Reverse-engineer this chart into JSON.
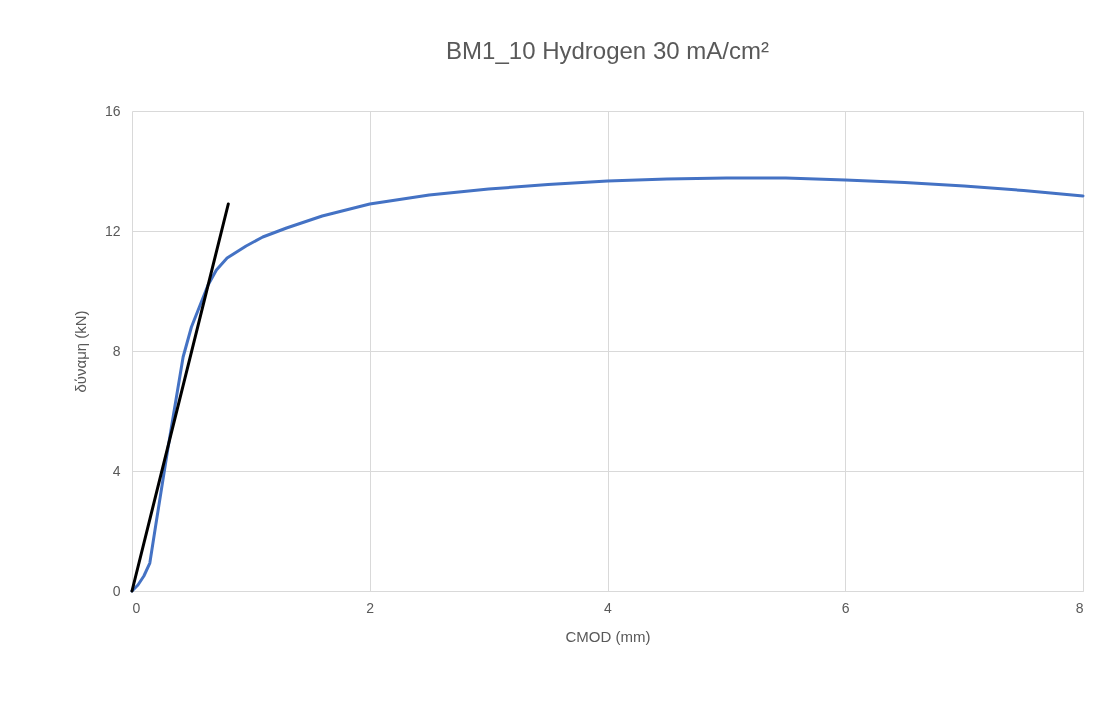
{
  "chart_data": {
    "type": "line",
    "title": "BM1_10 Hydrogen 30 mA/cm²",
    "xlabel": "CMOD (mm)",
    "ylabel": "δύναμη  (kN)",
    "x": [
      0,
      0.05,
      0.1,
      0.15,
      0.2,
      0.26,
      0.3,
      0.35,
      0.43,
      0.5,
      0.57,
      0.64,
      0.71,
      0.8,
      0.96,
      1.1,
      1.3,
      1.6,
      2,
      2.5,
      3,
      3.5,
      4,
      4.5,
      5,
      5.5,
      6,
      6.5,
      7,
      7.5,
      8
    ],
    "series": [
      {
        "color": "#4472c4",
        "values": [
          0,
          0.2,
          0.5,
          0.93,
          2.2,
          3.7,
          4.7,
          5.9,
          7.8,
          8.8,
          9.5,
          10.2,
          10.7,
          11.1,
          11.5,
          11.8,
          12.1,
          12.5,
          12.9,
          13.2,
          13.4,
          13.55,
          13.67,
          13.73,
          13.77,
          13.77,
          13.7,
          13.62,
          13.5,
          13.35,
          13.17
        ]
      },
      {
        "type": "line",
        "color": "#000000",
        "x": [
          0,
          0.81
        ],
        "values": [
          0,
          12.9
        ]
      }
    ],
    "xlim": [
      0,
      8
    ],
    "xticks": [
      0,
      2,
      4,
      6,
      8
    ],
    "ylim": [
      0,
      16
    ],
    "yticks": [
      0,
      4,
      8,
      12,
      16
    ],
    "grid": true
  }
}
